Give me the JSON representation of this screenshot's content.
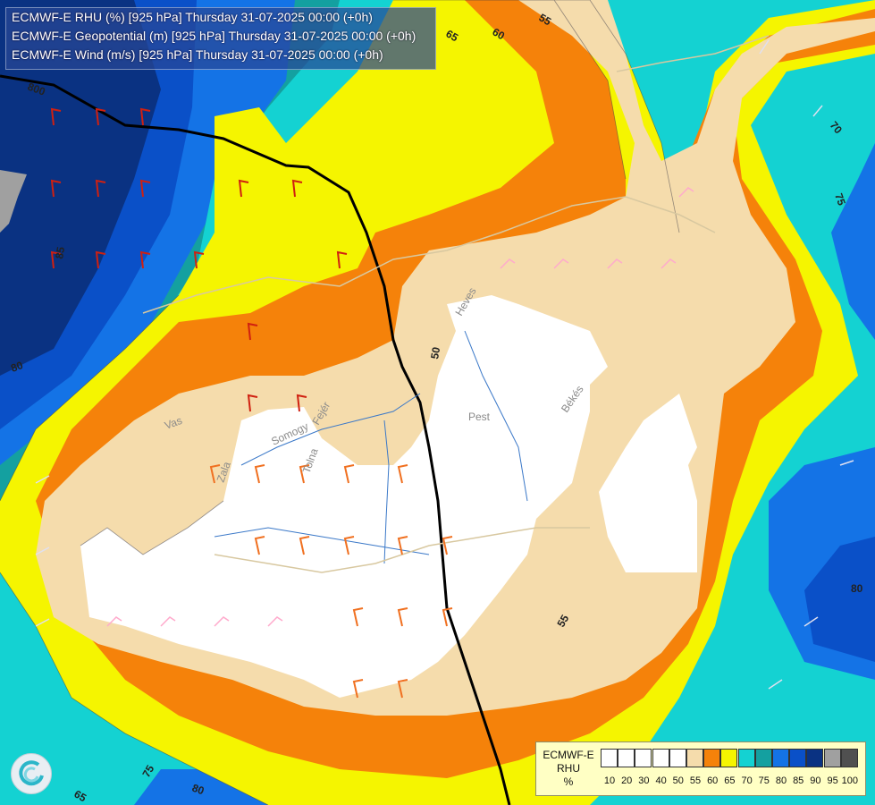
{
  "header": {
    "line1": "ECMWF-E RHU (%) [925 hPa] Thursday 31-07-2025 00:00 (+0h)",
    "line2": "ECMWF-E Geopotential (m) [925 hPa] Thursday 31-07-2025 00:00 (+0h)",
    "line3": "ECMWF-E Wind (m/s) [925 hPa] Thursday 31-07-2025 00:00 (+0h)"
  },
  "legend": {
    "title": "ECMWF-E RHU %",
    "line1": "ECMWF-E",
    "line2": "RHU",
    "line3": "%",
    "ticks": [
      "10",
      "20",
      "30",
      "40",
      "50",
      "55",
      "60",
      "65",
      "70",
      "75",
      "80",
      "85",
      "90",
      "95",
      "100"
    ],
    "colors": [
      "#ffffff",
      "#ffffff",
      "#ffffff",
      "#ffffff",
      "#ffffff",
      "#f5dcac",
      "#f5820a",
      "#f5f500",
      "#14d2d2",
      "#14a0a0",
      "#1473e6",
      "#0a50c8",
      "#0a3282",
      "#a0a0a0",
      "#505050"
    ]
  },
  "contour_labels": {
    "gp_800": "800",
    "c55_top": "55",
    "c60_top": "60",
    "c65_top": "65",
    "c70_right": "70",
    "c75_right": "75",
    "c80_left": "80",
    "c85_left": "85",
    "c50_center": "50",
    "c80_right": "80",
    "c55_bottom": "55",
    "c65_bottom": "65",
    "c75_bottom": "75",
    "c80_bottom": "80"
  },
  "regions": {
    "vas": "Vas",
    "zala": "Zala",
    "somogy": "Somogy",
    "tolna": "Tolna",
    "fejer": "Fejér",
    "pest": "Pest",
    "bekes": "Békés",
    "heves": "Heves"
  },
  "colors": {
    "white": "#ffffff",
    "tan": "#f5dcac",
    "orange": "#f5820a",
    "yellow": "#f5f500",
    "cyan": "#14d2d2",
    "teal": "#14a0a0",
    "blue": "#1473e6",
    "darkblue": "#0a50c8",
    "navy": "#0a3282"
  }
}
